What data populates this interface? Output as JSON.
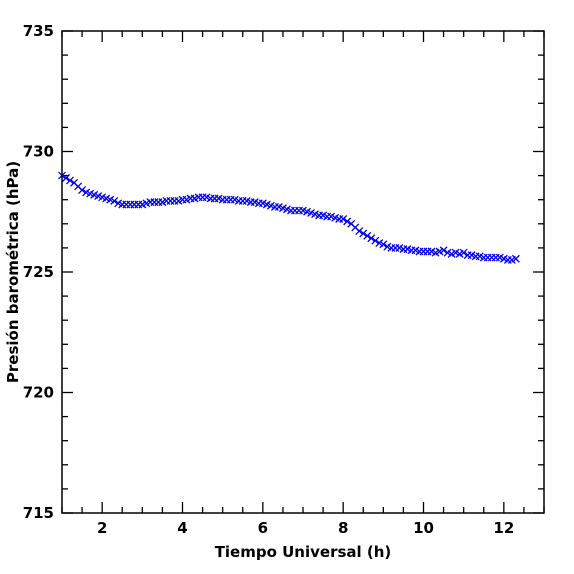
{
  "chart_data": {
    "type": "scatter",
    "title": "",
    "xlabel": "Tiempo Universal (h)",
    "ylabel": "Presión barométrica (hPa)",
    "xlim": [
      1,
      13
    ],
    "ylim": [
      715,
      735
    ],
    "x_major_ticks": [
      2,
      4,
      6,
      8,
      10,
      12
    ],
    "x_tick_labels": [
      "2",
      "4",
      "6",
      "8",
      "10",
      "12"
    ],
    "y_major_ticks": [
      715,
      720,
      725,
      730,
      735
    ],
    "y_tick_labels": [
      "715",
      "720",
      "725",
      "730",
      "735"
    ],
    "marker": "x",
    "marker_color": "#0000ee",
    "grid": false,
    "series": [
      {
        "x": [
          1.0,
          1.1,
          1.2,
          1.3,
          1.4,
          1.5,
          1.6,
          1.7,
          1.8,
          1.9,
          2.0,
          2.1,
          2.2,
          2.3,
          2.4,
          2.5,
          2.6,
          2.7,
          2.8,
          2.9,
          3.0,
          3.1,
          3.2,
          3.3,
          3.4,
          3.5,
          3.6,
          3.7,
          3.8,
          3.9,
          4.0,
          4.1,
          4.2,
          4.3,
          4.4,
          4.5,
          4.6,
          4.7,
          4.8,
          4.9,
          5.0,
          5.1,
          5.2,
          5.3,
          5.4,
          5.5,
          5.6,
          5.7,
          5.8,
          5.9,
          6.0,
          6.1,
          6.2,
          6.3,
          6.4,
          6.5,
          6.6,
          6.7,
          6.8,
          6.9,
          7.0,
          7.1,
          7.2,
          7.3,
          7.4,
          7.5,
          7.6,
          7.7,
          7.8,
          7.9,
          8.0,
          8.1,
          8.2,
          8.3,
          8.4,
          8.5,
          8.6,
          8.7,
          8.8,
          8.9,
          9.0,
          9.1,
          9.2,
          9.3,
          9.4,
          9.5,
          9.6,
          9.7,
          9.8,
          9.9,
          10.0,
          10.1,
          10.2,
          10.3,
          10.4,
          10.5,
          10.6,
          10.7,
          10.8,
          10.9,
          11.0,
          11.1,
          11.2,
          11.3,
          11.4,
          11.5,
          11.6,
          11.7,
          11.8,
          11.9,
          12.0,
          12.1,
          12.2,
          12.3
        ],
        "y": [
          729.0,
          728.9,
          728.8,
          728.7,
          728.55,
          728.4,
          728.3,
          728.25,
          728.2,
          728.15,
          728.1,
          728.05,
          728.0,
          727.95,
          727.85,
          727.8,
          727.8,
          727.8,
          727.8,
          727.8,
          727.8,
          727.85,
          727.9,
          727.9,
          727.9,
          727.9,
          727.95,
          727.95,
          727.95,
          727.95,
          728.0,
          728.0,
          728.05,
          728.05,
          728.1,
          728.1,
          728.1,
          728.05,
          728.05,
          728.05,
          728.0,
          728.0,
          728.0,
          728.0,
          727.95,
          727.95,
          727.95,
          727.9,
          727.9,
          727.85,
          727.85,
          727.8,
          727.75,
          727.7,
          727.7,
          727.65,
          727.6,
          727.55,
          727.55,
          727.55,
          727.55,
          727.5,
          727.45,
          727.4,
          727.35,
          727.35,
          727.3,
          727.3,
          727.25,
          727.2,
          727.2,
          727.1,
          727.0,
          726.85,
          726.7,
          726.6,
          726.5,
          726.4,
          726.3,
          726.2,
          726.15,
          726.05,
          726.0,
          726.0,
          726.0,
          725.95,
          725.95,
          725.9,
          725.9,
          725.85,
          725.85,
          725.85,
          725.85,
          725.8,
          725.85,
          725.9,
          725.8,
          725.75,
          725.8,
          725.75,
          725.8,
          725.7,
          725.7,
          725.65,
          725.65,
          725.6,
          725.6,
          725.6,
          725.6,
          725.6,
          725.55,
          725.5,
          725.5,
          725.55
        ]
      }
    ]
  }
}
